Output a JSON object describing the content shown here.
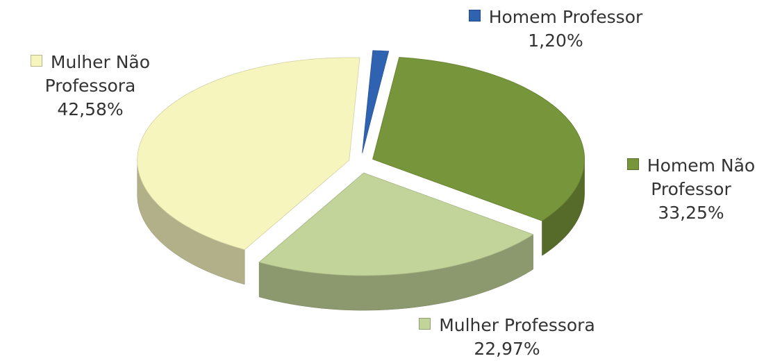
{
  "chart_data": {
    "type": "pie3d",
    "categories": [
      "Homem Professor",
      "Homem Não Professor",
      "Mulher Professora",
      "Mulher Não Professora"
    ],
    "values": [
      1.2,
      33.25,
      22.97,
      42.58
    ],
    "value_labels": [
      "1,20%",
      "33,25%",
      "22,97%",
      "42,58%"
    ],
    "colors": [
      "#2f63b1",
      "#77953a",
      "#c3d49a",
      "#f7f5be"
    ]
  }
}
